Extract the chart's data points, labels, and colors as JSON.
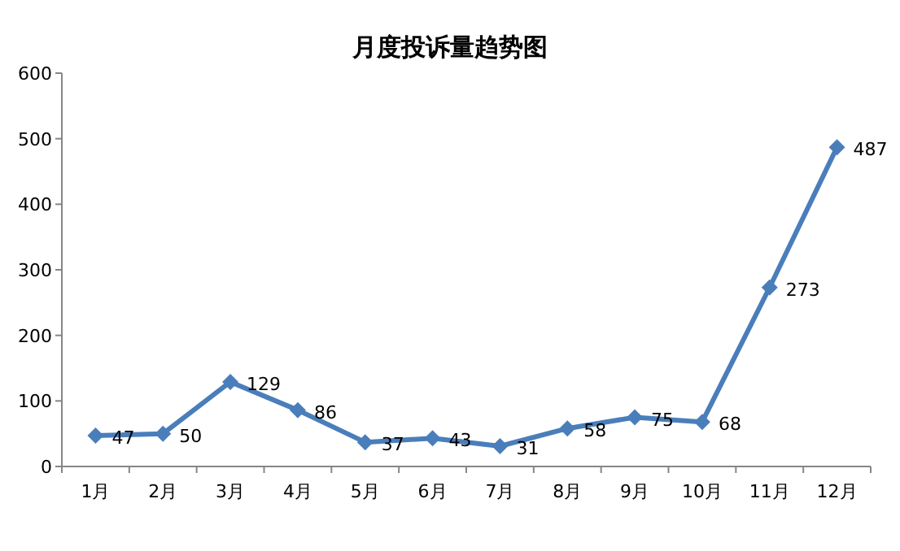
{
  "chart_data": {
    "type": "line",
    "title": "月度投诉量趋势图",
    "categories": [
      "1月",
      "2月",
      "3月",
      "4月",
      "5月",
      "6月",
      "7月",
      "8月",
      "9月",
      "10月",
      "11月",
      "12月"
    ],
    "values": [
      47,
      50,
      129,
      86,
      37,
      43,
      31,
      58,
      75,
      68,
      273,
      487
    ],
    "color": "#4a7ebb",
    "ylim": [
      0,
      600
    ],
    "yticks": [
      0,
      100,
      200,
      300,
      400,
      500,
      600
    ],
    "data_labels": true,
    "marker": "diamond",
    "line_style": "solid"
  }
}
